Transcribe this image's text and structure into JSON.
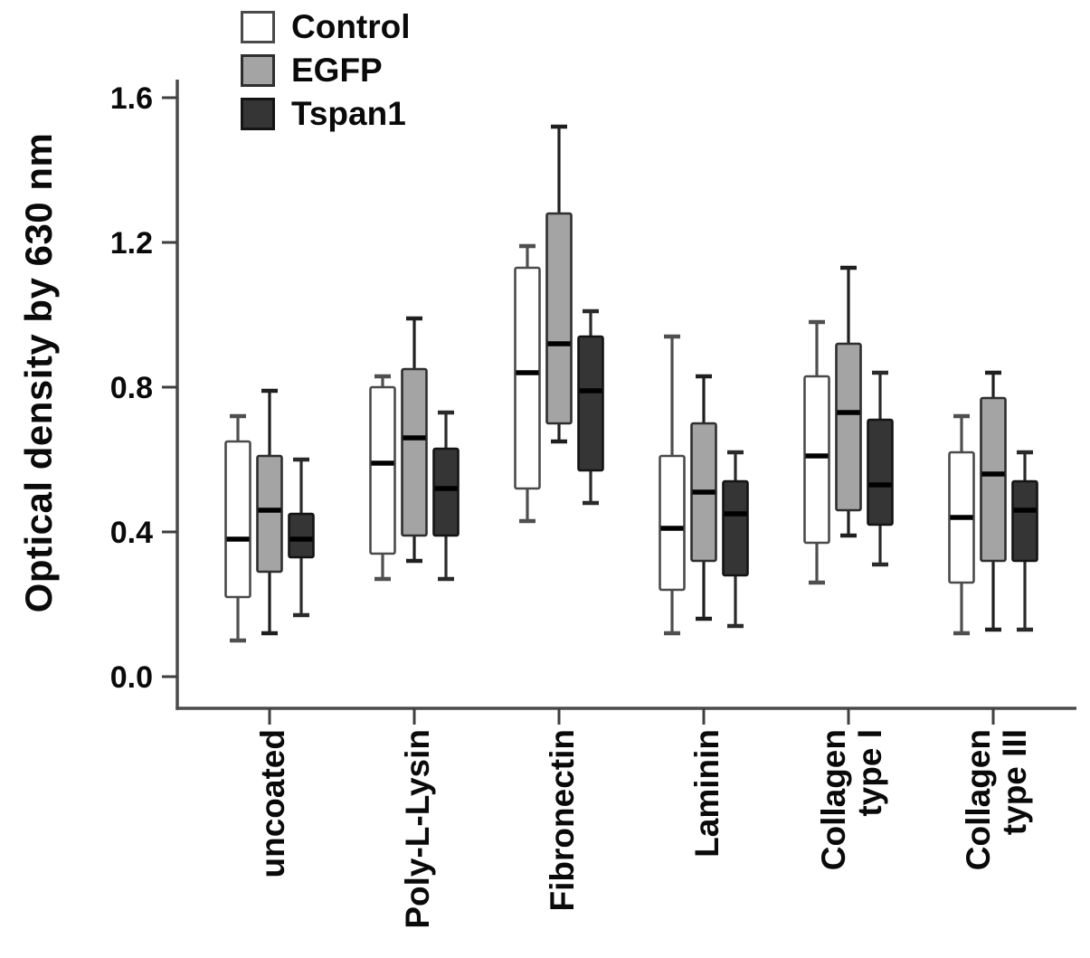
{
  "chart_data": {
    "type": "boxplot",
    "title": "",
    "xlabel": "",
    "ylabel": "Optical density by 630 nm",
    "ylim": [
      0,
      1.65
    ],
    "yticks": [
      "0.0",
      "0.4",
      "0.8",
      "1.2",
      "1.6"
    ],
    "grid": "off",
    "legend_position": "top-left",
    "categories": [
      [
        "uncoated"
      ],
      [
        "Poly-L-Lysin"
      ],
      [
        "Fibronectin"
      ],
      [
        "Laminin"
      ],
      [
        "Collagen",
        "type I"
      ],
      [
        "Collagen",
        "type III"
      ]
    ],
    "series": [
      {
        "name": "Control",
        "fill": "#ffffff",
        "stroke": "#4a4a4a",
        "whisker_color": "#4f4f4f",
        "median_color": "#000000",
        "boxes": [
          {
            "whislo": 0.1,
            "q1": 0.22,
            "med": 0.38,
            "q3": 0.65,
            "whishi": 0.72
          },
          {
            "whislo": 0.27,
            "q1": 0.34,
            "med": 0.59,
            "q3": 0.8,
            "whishi": 0.83
          },
          {
            "whislo": 0.43,
            "q1": 0.52,
            "med": 0.84,
            "q3": 1.13,
            "whishi": 1.19
          },
          {
            "whislo": 0.12,
            "q1": 0.24,
            "med": 0.41,
            "q3": 0.61,
            "whishi": 0.94
          },
          {
            "whislo": 0.26,
            "q1": 0.37,
            "med": 0.61,
            "q3": 0.83,
            "whishi": 0.98
          },
          {
            "whislo": 0.12,
            "q1": 0.26,
            "med": 0.44,
            "q3": 0.62,
            "whishi": 0.72
          }
        ]
      },
      {
        "name": "EGFP",
        "fill": "#a4a4a4",
        "stroke": "#2e2e2e",
        "whisker_color": "#1f1f1f",
        "median_color": "#000000",
        "boxes": [
          {
            "whislo": 0.12,
            "q1": 0.29,
            "med": 0.46,
            "q3": 0.61,
            "whishi": 0.79
          },
          {
            "whislo": 0.32,
            "q1": 0.39,
            "med": 0.66,
            "q3": 0.85,
            "whishi": 0.99
          },
          {
            "whislo": 0.65,
            "q1": 0.7,
            "med": 0.92,
            "q3": 1.28,
            "whishi": 1.52
          },
          {
            "whislo": 0.16,
            "q1": 0.32,
            "med": 0.51,
            "q3": 0.7,
            "whishi": 0.83
          },
          {
            "whislo": 0.39,
            "q1": 0.46,
            "med": 0.73,
            "q3": 0.92,
            "whishi": 1.13
          },
          {
            "whislo": 0.13,
            "q1": 0.32,
            "med": 0.56,
            "q3": 0.77,
            "whishi": 0.84
          }
        ]
      },
      {
        "name": "Tspan1",
        "fill": "#353535",
        "stroke": "#141414",
        "whisker_color": "#2a2a2a",
        "median_color": "#000000",
        "boxes": [
          {
            "whislo": 0.17,
            "q1": 0.33,
            "med": 0.38,
            "q3": 0.45,
            "whishi": 0.6
          },
          {
            "whislo": 0.27,
            "q1": 0.39,
            "med": 0.52,
            "q3": 0.63,
            "whishi": 0.73
          },
          {
            "whislo": 0.48,
            "q1": 0.57,
            "med": 0.79,
            "q3": 0.94,
            "whishi": 1.01
          },
          {
            "whislo": 0.14,
            "q1": 0.28,
            "med": 0.45,
            "q3": 0.54,
            "whishi": 0.62
          },
          {
            "whislo": 0.31,
            "q1": 0.42,
            "med": 0.53,
            "q3": 0.71,
            "whishi": 0.84
          },
          {
            "whislo": 0.13,
            "q1": 0.32,
            "med": 0.46,
            "q3": 0.54,
            "whishi": 0.62
          }
        ]
      }
    ]
  }
}
